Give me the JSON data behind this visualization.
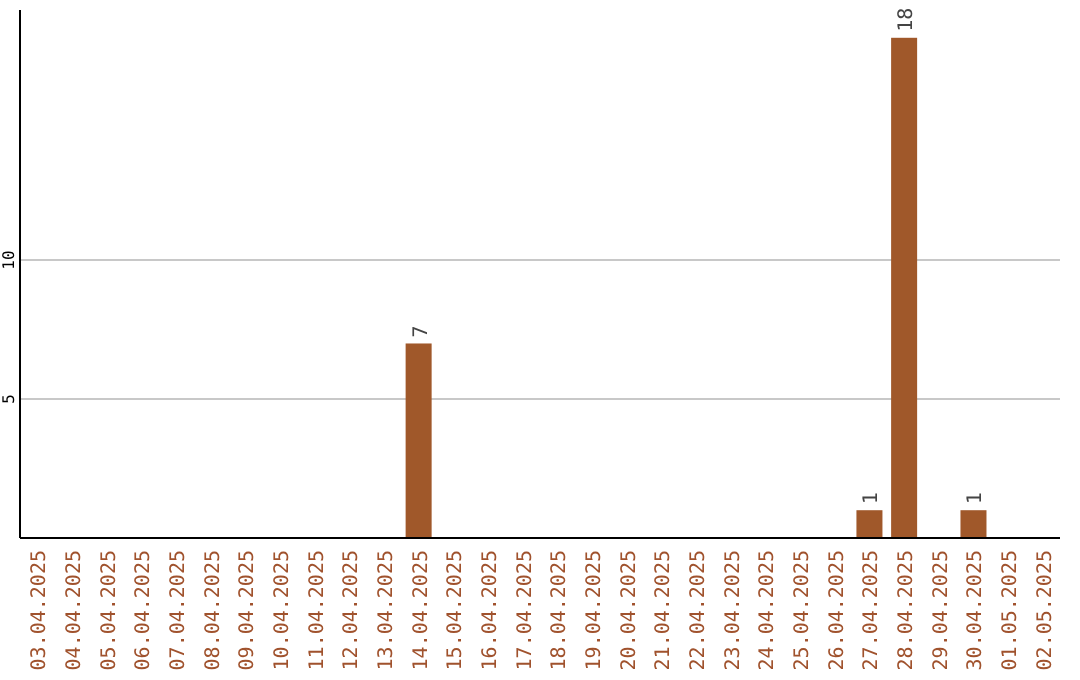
{
  "chart_data": {
    "type": "bar",
    "categories": [
      "03.04.2025",
      "04.04.2025",
      "05.04.2025",
      "06.04.2025",
      "07.04.2025",
      "08.04.2025",
      "09.04.2025",
      "10.04.2025",
      "11.04.2025",
      "12.04.2025",
      "13.04.2025",
      "14.04.2025",
      "15.04.2025",
      "16.04.2025",
      "17.04.2025",
      "18.04.2025",
      "19.04.2025",
      "20.04.2025",
      "21.04.2025",
      "22.04.2025",
      "23.04.2025",
      "24.04.2025",
      "25.04.2025",
      "26.04.2025",
      "27.04.2025",
      "28.04.2025",
      "29.04.2025",
      "30.04.2025",
      "01.05.2025",
      "02.05.2025"
    ],
    "values": [
      0,
      0,
      0,
      0,
      0,
      0,
      0,
      0,
      0,
      0,
      0,
      7,
      0,
      0,
      0,
      0,
      0,
      0,
      0,
      0,
      0,
      0,
      0,
      0,
      1,
      18,
      0,
      1,
      0,
      0
    ],
    "value_labels": [
      null,
      null,
      null,
      null,
      null,
      null,
      null,
      null,
      null,
      null,
      null,
      "7",
      null,
      null,
      null,
      null,
      null,
      null,
      null,
      null,
      null,
      null,
      null,
      null,
      "1",
      "18",
      null,
      "1",
      null,
      null
    ],
    "color": "#a0582a",
    "ylim": [
      0,
      19
    ],
    "yticks": [
      5,
      10
    ],
    "grid": "y"
  }
}
